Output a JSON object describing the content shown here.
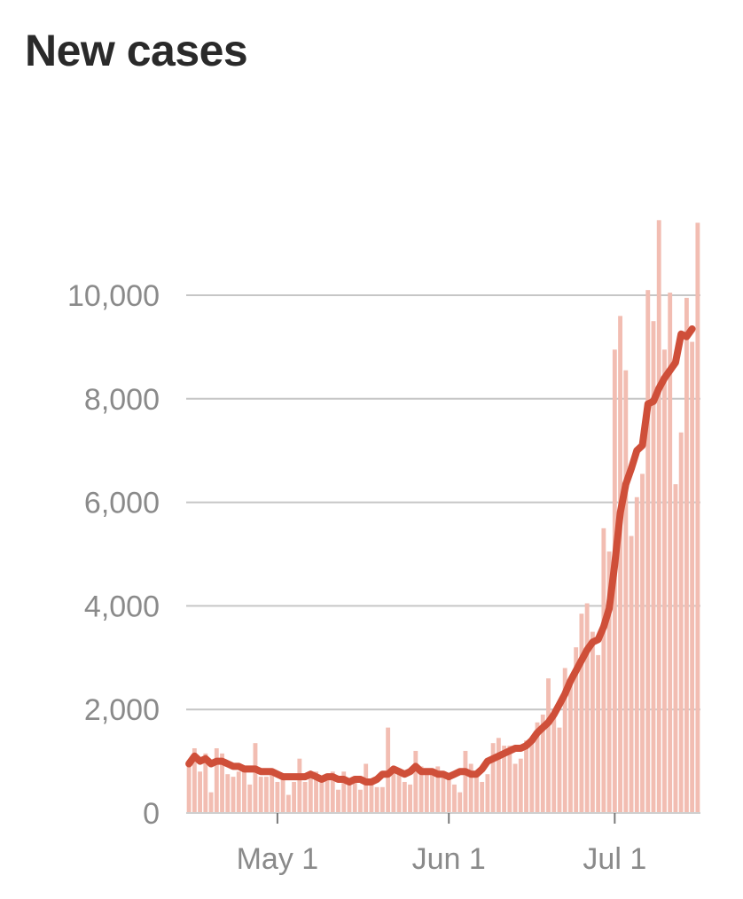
{
  "chart_data": {
    "type": "bar",
    "title": "New cases",
    "xlabel": "",
    "ylabel": "",
    "ylim": [
      0,
      11500
    ],
    "yticks": [
      0,
      2000,
      4000,
      6000,
      8000,
      10000
    ],
    "ytick_labels": [
      "0",
      "2,000",
      "4,000",
      "6,000",
      "8,000",
      "10,000"
    ],
    "xticks": [
      {
        "day": 16,
        "label": "May 1"
      },
      {
        "day": 47,
        "label": "Jun 1"
      },
      {
        "day": 77,
        "label": "Jul 1"
      }
    ],
    "grid": true,
    "legend": "none",
    "colors": {
      "bars": "#f2bdb2",
      "line": "#cf4f39",
      "grid": "#c6c6c6",
      "axis_text": "#8a8a8a",
      "title": "#2a2a2a"
    },
    "series": [
      {
        "type": "bar",
        "values": [
          900,
          1250,
          800,
          1150,
          400,
          1250,
          1150,
          750,
          700,
          800,
          800,
          550,
          1350,
          700,
          700,
          750,
          600,
          650,
          350,
          600,
          1050,
          600,
          700,
          800,
          600,
          700,
          800,
          450,
          800,
          650,
          650,
          450,
          950,
          550,
          500,
          500,
          1650,
          800,
          750,
          600,
          550,
          1200,
          900,
          800,
          800,
          900,
          700,
          650,
          550,
          400,
          1200,
          950,
          800,
          600,
          750,
          1350,
          1450,
          1300,
          1300,
          950,
          1050,
          1400,
          1350,
          1750,
          1900,
          2600,
          2000,
          1650,
          2800,
          2600,
          3200,
          3850,
          4050,
          3500,
          3050,
          5500,
          5050,
          8950,
          9600,
          8550,
          5350,
          6100,
          6550,
          10100,
          9500,
          11450,
          8950,
          10050,
          6350,
          7350,
          9950,
          9100,
          11400
        ]
      },
      {
        "type": "line",
        "values": [
          950,
          1100,
          1000,
          1050,
          950,
          1000,
          1000,
          950,
          900,
          900,
          850,
          850,
          850,
          800,
          800,
          800,
          750,
          700,
          700,
          700,
          700,
          700,
          750,
          700,
          650,
          700,
          700,
          650,
          650,
          600,
          650,
          650,
          600,
          600,
          650,
          750,
          750,
          850,
          800,
          750,
          800,
          900,
          800,
          800,
          800,
          750,
          750,
          700,
          750,
          800,
          800,
          750,
          750,
          850,
          1000,
          1050,
          1100,
          1150,
          1200,
          1250,
          1250,
          1300,
          1400,
          1550,
          1650,
          1750,
          1900,
          2100,
          2300,
          2550,
          2750,
          2950,
          3150,
          3300,
          3350,
          3600,
          3950,
          4800,
          5800,
          6350,
          6650,
          7000,
          7100,
          7900,
          7950,
          8200,
          8400,
          8550,
          8700,
          9250,
          9200,
          9350
        ]
      }
    ]
  }
}
